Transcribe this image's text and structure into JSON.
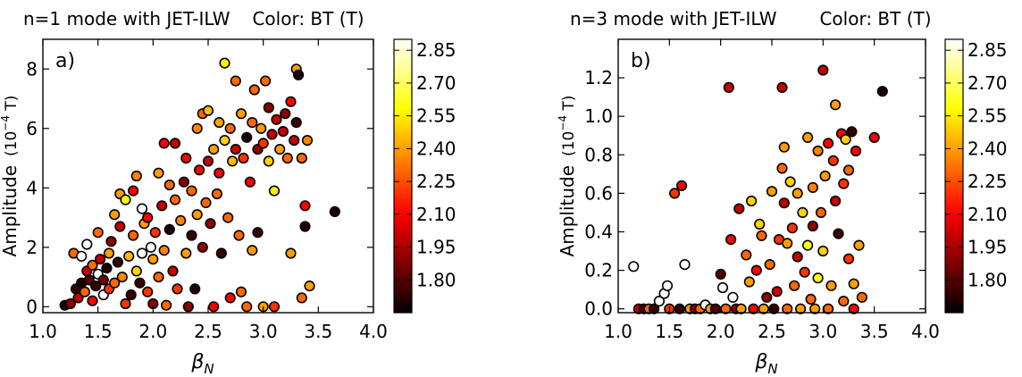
{
  "chart_data": [
    {
      "type": "scatter",
      "title": "n=1 mode with JET-ILW",
      "color_title": "Color: BT (T)",
      "panel_label": "a)",
      "xlabel": "β",
      "xlabel_sub": "N",
      "ylabel": "Amplitude",
      "ylabel_unit_prefix": "(10",
      "ylabel_unit_exp": "−4",
      "ylabel_unit_suffix": " T)",
      "xlim": [
        1.0,
        4.0
      ],
      "ylim": [
        -0.2,
        9.0
      ],
      "xticks": [
        1.0,
        1.5,
        2.0,
        2.5,
        3.0,
        3.5,
        4.0
      ],
      "xtick_labels": [
        "1.0",
        "1.5",
        "2.0",
        "2.5",
        "3.0",
        "3.5",
        "4.0"
      ],
      "yticks": [
        0,
        2,
        4,
        6,
        8
      ],
      "ytick_labels": [
        "0",
        "2",
        "4",
        "6",
        "8"
      ],
      "colorbar": {
        "label": "BT (T)",
        "range": [
          1.65,
          2.9
        ],
        "ticks": [
          2.85,
          2.7,
          2.55,
          2.4,
          2.25,
          2.1,
          1.95,
          1.8
        ],
        "tick_labels": [
          "2.85",
          "2.70",
          "2.55",
          "2.40",
          "2.25",
          "2.10",
          "1.95",
          "1.80"
        ]
      },
      "points": [
        [
          1.2,
          0.05,
          1.7
        ],
        [
          1.25,
          0.1,
          1.9
        ],
        [
          1.28,
          1.8,
          2.3
        ],
        [
          1.3,
          0.6,
          1.75
        ],
        [
          1.32,
          0.3,
          2.0
        ],
        [
          1.35,
          1.7,
          3.0
        ],
        [
          1.35,
          0.8,
          1.7
        ],
        [
          1.38,
          0.5,
          2.3
        ],
        [
          1.4,
          2.1,
          3.0
        ],
        [
          1.4,
          1.2,
          2.0
        ],
        [
          1.42,
          0.9,
          1.8
        ],
        [
          1.45,
          1.4,
          2.3
        ],
        [
          1.45,
          0.2,
          2.1
        ],
        [
          1.48,
          0.7,
          1.75
        ],
        [
          1.5,
          1.1,
          3.0
        ],
        [
          1.5,
          2.5,
          2.3
        ],
        [
          1.52,
          1.6,
          2.0
        ],
        [
          1.55,
          0.9,
          1.85
        ],
        [
          1.55,
          0.4,
          3.0
        ],
        [
          1.58,
          1.3,
          1.7
        ],
        [
          1.6,
          1.8,
          2.4
        ],
        [
          1.6,
          0.6,
          2.2
        ],
        [
          1.62,
          2.2,
          1.9
        ],
        [
          1.65,
          3.1,
          2.4
        ],
        [
          1.65,
          0.8,
          2.3
        ],
        [
          1.68,
          1.5,
          1.75
        ],
        [
          1.7,
          3.8,
          2.4
        ],
        [
          1.7,
          2.7,
          2.0
        ],
        [
          1.72,
          1.0,
          2.35
        ],
        [
          1.75,
          0.1,
          2.2
        ],
        [
          1.75,
          3.6,
          2.6
        ],
        [
          1.78,
          1.7,
          2.45
        ],
        [
          1.8,
          0.4,
          1.75
        ],
        [
          1.82,
          2.4,
          2.3
        ],
        [
          1.82,
          3.9,
          2.1
        ],
        [
          1.85,
          1.2,
          2.5
        ],
        [
          1.85,
          4.4,
          2.35
        ],
        [
          1.88,
          0.8,
          1.75
        ],
        [
          1.9,
          3.3,
          3.0
        ],
        [
          1.9,
          1.8,
          3.0
        ],
        [
          1.92,
          2.8,
          2.4
        ],
        [
          1.95,
          0.5,
          2.2
        ],
        [
          1.95,
          3.0,
          2.1
        ],
        [
          1.98,
          2.0,
          3.0
        ],
        [
          2.0,
          0.1,
          1.9
        ],
        [
          2.0,
          1.6,
          2.4
        ],
        [
          2.02,
          2.5,
          2.2
        ],
        [
          2.05,
          4.5,
          2.4
        ],
        [
          2.05,
          1.0,
          2.3
        ],
        [
          2.08,
          3.4,
          2.0
        ],
        [
          2.1,
          5.5,
          2.1
        ],
        [
          2.1,
          1.9,
          2.35
        ],
        [
          2.12,
          0.05,
          2.3
        ],
        [
          2.15,
          2.6,
          1.7
        ],
        [
          2.15,
          4.1,
          2.3
        ],
        [
          2.18,
          1.2,
          2.0
        ],
        [
          2.2,
          3.6,
          2.3
        ],
        [
          2.2,
          5.5,
          2.0
        ],
        [
          2.22,
          0.6,
          2.2
        ],
        [
          2.25,
          2.9,
          2.35
        ],
        [
          2.28,
          4.2,
          1.9
        ],
        [
          2.3,
          1.8,
          2.4
        ],
        [
          2.3,
          5.0,
          2.1
        ],
        [
          2.32,
          0.0,
          1.9
        ],
        [
          2.35,
          3.9,
          2.3
        ],
        [
          2.35,
          2.4,
          1.75
        ],
        [
          2.38,
          0.6,
          1.7
        ],
        [
          2.4,
          3.1,
          2.4
        ],
        [
          2.4,
          6.0,
          2.35
        ],
        [
          2.42,
          4.6,
          2.1
        ],
        [
          2.45,
          6.5,
          2.3
        ],
        [
          2.45,
          2.0,
          1.9
        ],
        [
          2.48,
          3.5,
          2.3
        ],
        [
          2.5,
          6.6,
          2.45
        ],
        [
          2.5,
          4.9,
          2.0
        ],
        [
          2.52,
          2.8,
          1.9
        ],
        [
          2.55,
          5.3,
          2.4
        ],
        [
          2.55,
          0.0,
          2.1
        ],
        [
          2.58,
          3.8,
          2.3
        ],
        [
          2.6,
          6.2,
          2.4
        ],
        [
          2.6,
          4.5,
          2.1
        ],
        [
          2.62,
          1.8,
          1.75
        ],
        [
          2.65,
          8.2,
          2.55
        ],
        [
          2.65,
          5.6,
          2.5
        ],
        [
          2.68,
          3.0,
          2.3
        ],
        [
          2.7,
          6.0,
          2.3
        ],
        [
          2.7,
          0.3,
          2.1
        ],
        [
          2.72,
          4.9,
          2.45
        ],
        [
          2.75,
          7.6,
          2.3
        ],
        [
          2.75,
          5.3,
          2.0
        ],
        [
          2.78,
          2.4,
          2.3
        ],
        [
          2.8,
          6.5,
          2.4
        ],
        [
          2.8,
          0.5,
          2.3
        ],
        [
          2.82,
          5.0,
          2.2
        ],
        [
          2.85,
          5.7,
          1.7
        ],
        [
          2.85,
          0.0,
          2.3
        ],
        [
          2.88,
          4.2,
          2.1
        ],
        [
          2.9,
          6.2,
          2.3
        ],
        [
          2.9,
          1.9,
          2.4
        ],
        [
          2.92,
          7.3,
          2.3
        ],
        [
          2.95,
          5.3,
          1.9
        ],
        [
          2.95,
          2.5,
          1.75
        ],
        [
          2.98,
          6.0,
          2.4
        ],
        [
          3.0,
          5.5,
          2.2
        ],
        [
          3.0,
          0.0,
          2.4
        ],
        [
          3.02,
          7.6,
          2.3
        ],
        [
          3.05,
          4.9,
          2.5
        ],
        [
          3.05,
          6.7,
          1.9
        ],
        [
          3.08,
          5.8,
          2.0
        ],
        [
          3.1,
          3.9,
          2.55
        ],
        [
          3.1,
          0.0,
          2.2
        ],
        [
          3.12,
          6.3,
          2.0
        ],
        [
          3.15,
          5.3,
          2.4
        ],
        [
          3.18,
          5.9,
          2.0
        ],
        [
          3.2,
          6.5,
          1.9
        ],
        [
          3.22,
          5.0,
          2.3
        ],
        [
          3.25,
          6.9,
          2.1
        ],
        [
          3.25,
          1.8,
          2.4
        ],
        [
          3.28,
          5.6,
          2.0
        ],
        [
          3.3,
          8.0,
          2.4
        ],
        [
          3.3,
          6.2,
          1.75
        ],
        [
          3.32,
          7.8,
          1.7
        ],
        [
          3.35,
          5.0,
          2.3
        ],
        [
          3.35,
          0.3,
          2.3
        ],
        [
          3.38,
          2.7,
          1.7
        ],
        [
          3.38,
          3.4,
          2.1
        ],
        [
          3.4,
          5.6,
          2.35
        ],
        [
          3.42,
          0.7,
          2.4
        ],
        [
          3.65,
          3.2,
          1.7
        ]
      ]
    },
    {
      "type": "scatter",
      "title": "n=3 mode with JET-ILW",
      "color_title": "Color: BT (T)",
      "panel_label": "b)",
      "xlabel": "β",
      "xlabel_sub": "N",
      "ylabel": "Amplitude",
      "ylabel_unit_prefix": "(10",
      "ylabel_unit_exp": "−4",
      "ylabel_unit_suffix": " T)",
      "xlim": [
        1.0,
        4.0
      ],
      "ylim": [
        -0.02,
        1.4
      ],
      "xticks": [
        1.0,
        1.5,
        2.0,
        2.5,
        3.0,
        3.5,
        4.0
      ],
      "xtick_labels": [
        "1.0",
        "1.5",
        "2.0",
        "2.5",
        "3.0",
        "3.5",
        "4.0"
      ],
      "yticks": [
        0.0,
        0.2,
        0.4,
        0.6,
        0.8,
        1.0,
        1.2
      ],
      "ytick_labels": [
        "0.0",
        "0.2",
        "0.4",
        "0.6",
        "0.8",
        "1.0",
        "1.2"
      ],
      "colorbar": {
        "label": "BT (T)",
        "range": [
          1.65,
          2.9
        ],
        "ticks": [
          2.85,
          2.7,
          2.55,
          2.4,
          2.25,
          2.1,
          1.95,
          1.8
        ],
        "tick_labels": [
          "2.85",
          "2.70",
          "2.55",
          "2.40",
          "2.25",
          "2.10",
          "1.95",
          "1.80"
        ]
      },
      "points": [
        [
          1.15,
          0.22,
          3.0
        ],
        [
          1.2,
          0.0,
          2.0
        ],
        [
          1.25,
          0.0,
          1.8
        ],
        [
          1.3,
          0.0,
          2.3
        ],
        [
          1.35,
          0.0,
          1.75
        ],
        [
          1.4,
          0.04,
          3.0
        ],
        [
          1.45,
          0.08,
          3.0
        ],
        [
          1.48,
          0.12,
          3.0
        ],
        [
          1.5,
          0.0,
          2.2
        ],
        [
          1.55,
          0.6,
          2.2
        ],
        [
          1.6,
          0.0,
          1.75
        ],
        [
          1.62,
          0.64,
          2.1
        ],
        [
          1.65,
          0.23,
          3.0
        ],
        [
          1.7,
          0.0,
          2.4
        ],
        [
          1.75,
          0.0,
          1.9
        ],
        [
          1.8,
          0.0,
          2.3
        ],
        [
          1.85,
          0.02,
          3.0
        ],
        [
          1.9,
          0.0,
          2.4
        ],
        [
          1.95,
          0.0,
          1.8
        ],
        [
          2.0,
          0.18,
          1.8
        ],
        [
          2.02,
          0.11,
          3.0
        ],
        [
          2.05,
          0.0,
          2.3
        ],
        [
          2.08,
          1.15,
          2.0
        ],
        [
          2.1,
          0.36,
          2.1
        ],
        [
          2.12,
          0.06,
          3.0
        ],
        [
          2.15,
          0.0,
          1.9
        ],
        [
          2.18,
          0.52,
          2.0
        ],
        [
          2.2,
          0.0,
          2.4
        ],
        [
          2.25,
          0.28,
          2.3
        ],
        [
          2.28,
          0.14,
          2.4
        ],
        [
          2.3,
          0.56,
          2.5
        ],
        [
          2.32,
          0.0,
          2.1
        ],
        [
          2.35,
          0.2,
          2.1
        ],
        [
          2.38,
          0.44,
          2.5
        ],
        [
          2.4,
          0.38,
          2.3
        ],
        [
          2.42,
          0.0,
          2.4
        ],
        [
          2.45,
          0.06,
          1.9
        ],
        [
          2.48,
          0.23,
          2.3
        ],
        [
          2.5,
          0.61,
          2.4
        ],
        [
          2.52,
          0.0,
          1.75
        ],
        [
          2.55,
          0.09,
          2.0
        ],
        [
          2.57,
          0.36,
          2.2
        ],
        [
          2.6,
          1.15,
          2.0
        ],
        [
          2.6,
          0.73,
          2.3
        ],
        [
          2.62,
          0.84,
          2.4
        ],
        [
          2.62,
          0.55,
          2.0
        ],
        [
          2.65,
          0.34,
          2.4
        ],
        [
          2.65,
          0.0,
          2.3
        ],
        [
          2.68,
          0.66,
          2.5
        ],
        [
          2.7,
          0.42,
          2.2
        ],
        [
          2.72,
          0.12,
          2.3
        ],
        [
          2.75,
          0.6,
          2.4
        ],
        [
          2.75,
          0.27,
          2.0
        ],
        [
          2.78,
          0.0,
          2.4
        ],
        [
          2.8,
          0.5,
          2.5
        ],
        [
          2.82,
          0.19,
          2.2
        ],
        [
          2.85,
          0.89,
          2.4
        ],
        [
          2.85,
          0.33,
          2.6
        ],
        [
          2.88,
          0.05,
          2.3
        ],
        [
          2.9,
          0.63,
          2.35
        ],
        [
          2.9,
          0.43,
          1.9
        ],
        [
          2.92,
          0.0,
          2.4
        ],
        [
          2.95,
          0.82,
          2.35
        ],
        [
          2.95,
          0.16,
          2.6
        ],
        [
          2.98,
          0.5,
          2.3
        ],
        [
          3.0,
          1.24,
          2.0
        ],
        [
          3.0,
          0.3,
          2.5
        ],
        [
          3.02,
          0.69,
          2.4
        ],
        [
          3.05,
          0.0,
          2.3
        ],
        [
          3.05,
          0.86,
          2.1
        ],
        [
          3.08,
          0.12,
          2.4
        ],
        [
          3.1,
          0.77,
          2.2
        ],
        [
          3.12,
          0.56,
          2.0
        ],
        [
          3.12,
          1.06,
          2.4
        ],
        [
          3.15,
          0.39,
          1.75
        ],
        [
          3.18,
          0.91,
          2.1
        ],
        [
          3.2,
          0.04,
          2.3
        ],
        [
          3.2,
          0.65,
          2.2
        ],
        [
          3.22,
          0.88,
          2.5
        ],
        [
          3.25,
          0.72,
          2.3
        ],
        [
          3.25,
          0.26,
          2.2
        ],
        [
          3.28,
          0.92,
          1.75
        ],
        [
          3.3,
          0.0,
          2.1
        ],
        [
          3.3,
          0.13,
          2.4
        ],
        [
          3.32,
          0.82,
          2.1
        ],
        [
          3.35,
          0.33,
          2.4
        ],
        [
          3.38,
          0.06,
          2.3
        ],
        [
          3.5,
          0.89,
          2.1
        ],
        [
          3.58,
          1.13,
          1.7
        ]
      ]
    }
  ]
}
